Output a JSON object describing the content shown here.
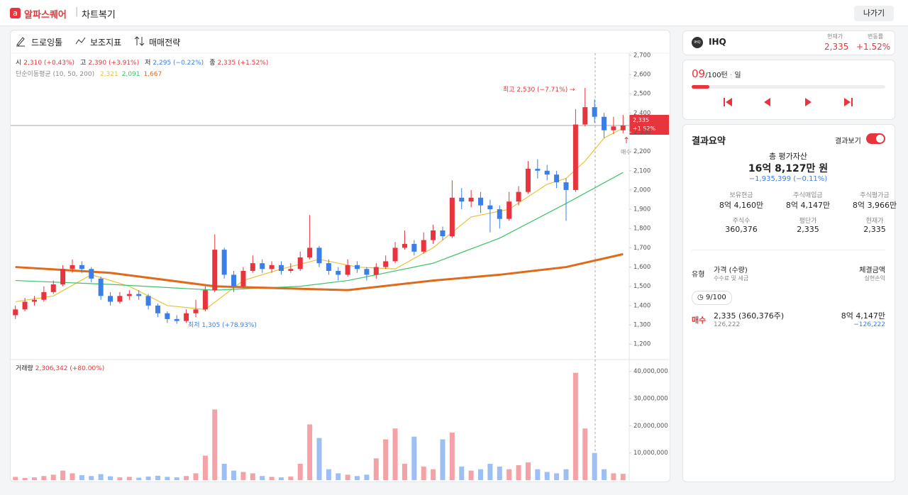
{
  "header": {
    "brand": "알파스퀘어",
    "section": "차트복기",
    "exit": "나가기"
  },
  "toolbar": [
    "드로잉툴",
    "보조지표",
    "매매전략"
  ],
  "chart_data": [
    {
      "type": "candlestick",
      "ohlc_labels": [
        {
          "name": "시",
          "text": "2,310 (+0.43%)"
        },
        {
          "name": "고",
          "text": "2,390 (+3.91%)"
        },
        {
          "name": "저",
          "text": "2,295 (−0.22%)"
        },
        {
          "name": "종",
          "text": "2,335 (+1.52%)"
        }
      ],
      "ma_legend": {
        "label": "단순이동평균 (10, 50, 200)",
        "values": [
          "2,321",
          "2,091",
          "1,667"
        ]
      },
      "annotations": {
        "high": "최고 2,530 (−7.71%) →",
        "low": "최저 1,305 (+78.93%)",
        "trade": "매수",
        "price_tag": "2,335",
        "change_tag": "+1.52%"
      },
      "up_color": "#e8343c",
      "down_color": "#3b7ee8",
      "candles": [
        [
          1350,
          1400,
          1330,
          1380
        ],
        [
          1380,
          1440,
          1370,
          1420
        ],
        [
          1420,
          1450,
          1400,
          1430
        ],
        [
          1430,
          1500,
          1420,
          1470
        ],
        [
          1470,
          1530,
          1460,
          1510
        ],
        [
          1510,
          1610,
          1500,
          1590
        ],
        [
          1590,
          1640,
          1570,
          1610
        ],
        [
          1610,
          1630,
          1570,
          1590
        ],
        [
          1590,
          1600,
          1520,
          1540
        ],
        [
          1540,
          1550,
          1430,
          1450
        ],
        [
          1450,
          1470,
          1400,
          1420
        ],
        [
          1420,
          1470,
          1410,
          1450
        ],
        [
          1450,
          1480,
          1430,
          1460
        ],
        [
          1460,
          1480,
          1430,
          1450
        ],
        [
          1450,
          1460,
          1380,
          1400
        ],
        [
          1400,
          1410,
          1340,
          1360
        ],
        [
          1360,
          1370,
          1310,
          1330
        ],
        [
          1330,
          1350,
          1305,
          1320
        ],
        [
          1320,
          1380,
          1310,
          1360
        ],
        [
          1360,
          1430,
          1340,
          1380
        ],
        [
          1380,
          1500,
          1370,
          1480
        ],
        [
          1480,
          1770,
          1470,
          1690
        ],
        [
          1690,
          1700,
          1540,
          1560
        ],
        [
          1560,
          1580,
          1470,
          1500
        ],
        [
          1500,
          1600,
          1490,
          1580
        ],
        [
          1580,
          1660,
          1570,
          1620
        ],
        [
          1620,
          1640,
          1570,
          1590
        ],
        [
          1590,
          1630,
          1570,
          1610
        ],
        [
          1610,
          1630,
          1560,
          1580
        ],
        [
          1580,
          1620,
          1570,
          1590
        ],
        [
          1590,
          1680,
          1580,
          1650
        ],
        [
          1650,
          1870,
          1640,
          1700
        ],
        [
          1700,
          1710,
          1600,
          1620
        ],
        [
          1620,
          1640,
          1560,
          1580
        ],
        [
          1580,
          1600,
          1530,
          1560
        ],
        [
          1560,
          1640,
          1550,
          1610
        ],
        [
          1610,
          1630,
          1570,
          1590
        ],
        [
          1590,
          1600,
          1530,
          1560
        ],
        [
          1560,
          1620,
          1540,
          1600
        ],
        [
          1600,
          1660,
          1590,
          1630
        ],
        [
          1630,
          1730,
          1620,
          1700
        ],
        [
          1700,
          1790,
          1690,
          1720
        ],
        [
          1720,
          1740,
          1660,
          1680
        ],
        [
          1680,
          1780,
          1670,
          1740
        ],
        [
          1740,
          1820,
          1720,
          1790
        ],
        [
          1790,
          1810,
          1740,
          1760
        ],
        [
          1760,
          2050,
          1750,
          1960
        ],
        [
          1960,
          2010,
          1900,
          1940
        ],
        [
          1940,
          2000,
          1910,
          1960
        ],
        [
          1960,
          1990,
          1880,
          1920
        ],
        [
          1920,
          1950,
          1780,
          1900
        ],
        [
          1900,
          1920,
          1800,
          1850
        ],
        [
          1850,
          1990,
          1840,
          1940
        ],
        [
          1940,
          2020,
          1920,
          1990
        ],
        [
          1990,
          2150,
          1980,
          2110
        ],
        [
          2110,
          2160,
          2060,
          2100
        ],
        [
          2100,
          2130,
          2050,
          2080
        ],
        [
          2080,
          2100,
          2010,
          2040
        ],
        [
          2040,
          2060,
          1840,
          2000
        ],
        [
          2000,
          2420,
          1990,
          2340
        ],
        [
          2340,
          2530,
          2330,
          2430
        ],
        [
          2430,
          2470,
          2350,
          2380
        ],
        [
          2380,
          2400,
          2270,
          2310
        ],
        [
          2310,
          2380,
          2290,
          2330
        ],
        [
          2310,
          2390,
          2295,
          2335
        ]
      ],
      "series": [
        {
          "color": "#e9c23a",
          "width": 1.2,
          "x": [
            0,
            4,
            8,
            12,
            16,
            20,
            24,
            28,
            32,
            36,
            40,
            44,
            48,
            52,
            56,
            58,
            60,
            62,
            64
          ],
          "values": [
            1420,
            1450,
            1560,
            1500,
            1400,
            1380,
            1530,
            1590,
            1640,
            1600,
            1590,
            1700,
            1860,
            1900,
            2030,
            2060,
            2150,
            2270,
            2321
          ]
        },
        {
          "color": "#3cc46a",
          "width": 1.2,
          "x": [
            0,
            10,
            21,
            30,
            35,
            44,
            51,
            58,
            64
          ],
          "values": [
            1530,
            1510,
            1480,
            1500,
            1530,
            1620,
            1750,
            1930,
            2091
          ]
        },
        {
          "color": "#e06a1b",
          "width": 3,
          "x": [
            0,
            10,
            21,
            35,
            44,
            51,
            58,
            64
          ],
          "values": [
            1600,
            1570,
            1500,
            1480,
            1530,
            1560,
            1600,
            1667
          ]
        }
      ],
      "ylim": [
        1175,
        2725
      ],
      "yticks": [
        {
          "value": 1200,
          "label": "1,200"
        },
        {
          "value": 1300,
          "label": "1,300"
        },
        {
          "value": 1400,
          "label": "1,400"
        },
        {
          "value": 1500,
          "label": "1,500"
        },
        {
          "value": 1600,
          "label": "1,600"
        },
        {
          "value": 1700,
          "label": "1,700"
        },
        {
          "value": 1800,
          "label": "1,800"
        },
        {
          "value": 1900,
          "label": "1,900"
        },
        {
          "value": 2000,
          "label": "2,000"
        },
        {
          "value": 2100,
          "label": "2,100"
        },
        {
          "value": 2200,
          "label": "2,200"
        },
        {
          "value": 2300,
          "label": "2,300"
        },
        {
          "value": 2400,
          "label": "2,400"
        },
        {
          "value": 2500,
          "label": "2,500"
        },
        {
          "value": 2600,
          "label": "2,600"
        },
        {
          "value": 2700,
          "label": "2,700"
        }
      ]
    },
    {
      "type": "bar",
      "title": "거래량",
      "subtitle": "2,306,342 (+80.00%)",
      "up_color": "#f3a3a8",
      "down_color": "#9dbff3",
      "values": [
        1200000,
        800000,
        1000000,
        1500000,
        2000000,
        3500000,
        2500000,
        1800000,
        1500000,
        2200000,
        1400000,
        1000000,
        1200000,
        900000,
        1300000,
        1600000,
        1200000,
        1000000,
        1500000,
        2500000,
        9000000,
        26000000,
        6000000,
        3500000,
        3000000,
        2500000,
        1500000,
        1200000,
        1000000,
        1300000,
        6000000,
        20500000,
        15500000,
        4000000,
        2500000,
        2000000,
        1500000,
        2000000,
        8000000,
        15000000,
        19000000,
        6000000,
        16000000,
        5000000,
        4000000,
        15000000,
        17500000,
        5000000,
        3500000,
        4000000,
        6000000,
        5000000,
        4000000,
        5500000,
        6500000,
        4000000,
        3000000,
        2500000,
        4000000,
        39500000,
        19000000,
        10000000,
        4000000,
        2500000,
        2306342
      ],
      "ylim": [
        0,
        41500000
      ],
      "yticks": [
        {
          "value": 10000000,
          "label": "10,000,000"
        },
        {
          "value": 20000000,
          "label": "20,000,000"
        },
        {
          "value": 30000000,
          "label": "30,000,000"
        },
        {
          "value": 40000000,
          "label": "40,000,000"
        }
      ]
    }
  ],
  "stock": {
    "logo": "IHQ",
    "name": "IHQ",
    "price_label": "현재가",
    "price": "2,335",
    "change_label": "변동률",
    "change": "+1.52%"
  },
  "turn": {
    "current": "09",
    "total": "/100턴",
    "sep": "·",
    "unit": "일",
    "progress": 9,
    "progress_max": 100
  },
  "summary": {
    "title": "결과요약",
    "toggle_label": "결과보기",
    "total_label": "총 평가자산",
    "total": "16억 8,127만 원",
    "total_change": "−1,935,399 (−0.11%)",
    "stats": [
      {
        "label": "보유현금",
        "value": "8억 4,160만"
      },
      {
        "label": "주식매입금",
        "value": "8억 4,147만"
      },
      {
        "label": "주식평가금",
        "value": "8억 3,966만"
      },
      {
        "label": "주식수",
        "value": "360,376"
      },
      {
        "label": "평단가",
        "value": "2,335"
      },
      {
        "label": "현재가",
        "value": "2,335"
      }
    ]
  },
  "trades": {
    "headers": [
      "유형",
      "가격 (수량)",
      "수수료 및 세금",
      "체결금액",
      "실현손익"
    ],
    "turn": "9/100",
    "rows": [
      {
        "type": "매수",
        "price": "2,335 (360,376주)",
        "fee": "126,222",
        "amount": "8억 4,147만",
        "pnl": "−126,222"
      }
    ]
  }
}
